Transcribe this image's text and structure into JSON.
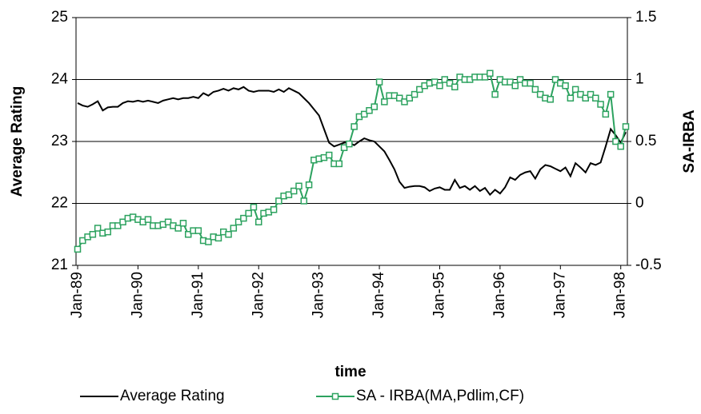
{
  "chart_data": {
    "type": "line",
    "xlabel": "time",
    "ylabel": "Average Rating",
    "y2label": "SA-IRBA",
    "categories": [
      "Jan-89",
      null,
      null,
      null,
      null,
      null,
      null,
      null,
      null,
      null,
      null,
      null,
      "Jan-90",
      null,
      null,
      null,
      null,
      null,
      null,
      null,
      null,
      null,
      null,
      null,
      "Jan-91",
      null,
      null,
      null,
      null,
      null,
      null,
      null,
      null,
      null,
      null,
      null,
      "Jan-92",
      null,
      null,
      null,
      null,
      null,
      null,
      null,
      null,
      null,
      null,
      null,
      "Jan-93",
      null,
      null,
      null,
      null,
      null,
      null,
      null,
      null,
      null,
      null,
      null,
      "Jan-94",
      null,
      null,
      null,
      null,
      null,
      null,
      null,
      null,
      null,
      null,
      null,
      "Jan-95",
      null,
      null,
      null,
      null,
      null,
      null,
      null,
      null,
      null,
      null,
      null,
      "Jan-96",
      null,
      null,
      null,
      null,
      null,
      null,
      null,
      null,
      null,
      null,
      null,
      "Jan-97",
      null,
      null,
      null,
      null,
      null,
      null,
      null,
      null,
      null,
      null,
      null,
      "Jan-98",
      null
    ],
    "series": [
      {
        "name": "Average Rating",
        "color": "#000000",
        "axis": "y",
        "values": [
          23.62,
          23.58,
          23.56,
          23.6,
          23.65,
          23.5,
          23.55,
          23.56,
          23.56,
          23.62,
          23.65,
          23.64,
          23.66,
          23.64,
          23.66,
          23.64,
          23.62,
          23.66,
          23.68,
          23.7,
          23.68,
          23.7,
          23.7,
          23.72,
          23.7,
          23.78,
          23.74,
          23.8,
          23.82,
          23.85,
          23.82,
          23.86,
          23.84,
          23.88,
          23.82,
          23.8,
          23.82,
          23.82,
          23.82,
          23.8,
          23.84,
          23.8,
          23.86,
          23.82,
          23.78,
          23.7,
          23.62,
          23.52,
          23.42,
          23.2,
          22.98,
          22.92,
          22.95,
          22.98,
          22.98,
          22.94,
          23.0,
          23.05,
          23.02,
          23.0,
          22.92,
          22.84,
          22.7,
          22.55,
          22.35,
          22.25,
          22.27,
          22.28,
          22.28,
          22.26,
          22.2,
          22.24,
          22.26,
          22.22,
          22.22,
          22.38,
          22.25,
          22.28,
          22.22,
          22.28,
          22.2,
          22.25,
          22.14,
          22.22,
          22.16,
          22.26,
          22.42,
          22.38,
          22.46,
          22.5,
          22.52,
          22.4,
          22.55,
          22.62,
          22.6,
          22.56,
          22.52,
          22.58,
          22.44,
          22.65,
          22.58,
          22.5,
          22.65,
          22.62,
          22.66,
          22.92,
          23.2,
          23.1,
          22.98,
          23.15
        ]
      },
      {
        "name": "SA - IRBA(MA,Pdlim,CF)",
        "color": "#2ca25f",
        "axis": "y2",
        "values": [
          -0.37,
          -0.3,
          -0.27,
          -0.25,
          -0.2,
          -0.24,
          -0.23,
          -0.18,
          -0.18,
          -0.15,
          -0.12,
          -0.11,
          -0.13,
          -0.15,
          -0.13,
          -0.18,
          -0.18,
          -0.17,
          -0.15,
          -0.18,
          -0.2,
          -0.16,
          -0.25,
          -0.22,
          -0.22,
          -0.3,
          -0.31,
          -0.27,
          -0.28,
          -0.23,
          -0.25,
          -0.2,
          -0.15,
          -0.12,
          -0.08,
          -0.03,
          -0.15,
          -0.08,
          -0.07,
          -0.05,
          0.02,
          0.06,
          0.07,
          0.1,
          0.14,
          0.02,
          0.15,
          0.35,
          0.36,
          0.37,
          0.39,
          0.32,
          0.32,
          0.45,
          0.48,
          0.62,
          0.7,
          0.72,
          0.75,
          0.78,
          0.98,
          0.82,
          0.87,
          0.87,
          0.85,
          0.82,
          0.85,
          0.88,
          0.92,
          0.95,
          0.97,
          0.98,
          0.95,
          1.0,
          0.97,
          0.94,
          1.02,
          1.0,
          1.0,
          1.02,
          1.02,
          1.02,
          1.05,
          0.88,
          1.0,
          0.98,
          0.98,
          0.95,
          1.0,
          0.97,
          0.97,
          0.92,
          0.88,
          0.85,
          0.84,
          1.0,
          0.97,
          0.95,
          0.85,
          0.92,
          0.88,
          0.85,
          0.88,
          0.85,
          0.8,
          0.72,
          0.88,
          0.5,
          0.46,
          0.62
        ]
      }
    ],
    "ylim": [
      21,
      25
    ],
    "yticks": [
      21,
      22,
      23,
      24,
      25
    ],
    "y2lim": [
      -0.5,
      1.5
    ],
    "y2ticks": [
      -0.5,
      0,
      0.5,
      1,
      1.5
    ],
    "grid": true,
    "legend": "bottom"
  }
}
